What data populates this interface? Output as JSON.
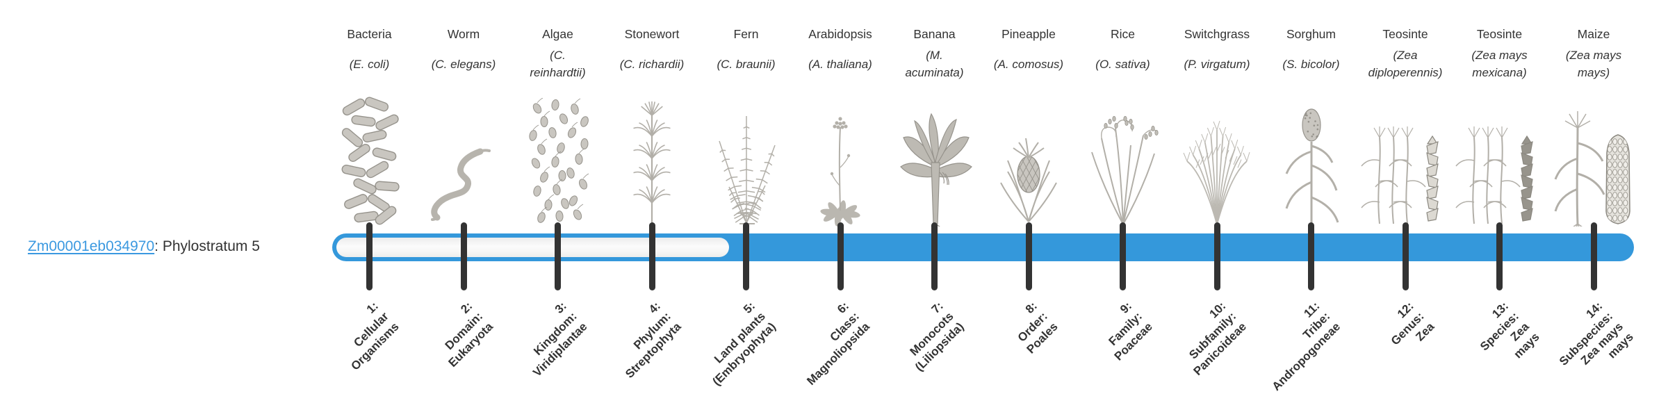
{
  "gene": {
    "id": "Zm00001eb034970",
    "description": ": Phylostratum 5"
  },
  "bar": {
    "total_strata": 14,
    "filled_from_stratum": 5,
    "unfilled_strata": [
      1,
      2,
      3,
      4
    ]
  },
  "colors": {
    "bar_blue": "#3498db",
    "tick_dark": "#333333",
    "link_blue": "#3b99e0",
    "text": "#333333",
    "icon_gray": "#b5b2ab",
    "background": "#ffffff"
  },
  "columns": [
    {
      "name": "Bacteria",
      "sci": "(E. coli)",
      "icon": "bacteria-icon",
      "stratum": [
        "1:",
        "Cellular",
        "Organisms"
      ]
    },
    {
      "name": "Worm",
      "sci": "(C. elegans)",
      "icon": "worm-icon",
      "stratum": [
        "2:",
        "Domain:",
        "Eukaryota"
      ]
    },
    {
      "name": "Algae",
      "sci": "(C. reinhardtii)",
      "icon": "algae-icon",
      "stratum": [
        "3:",
        "Kingdom:",
        "Viridiplantae"
      ]
    },
    {
      "name": "Stonewort",
      "sci": "(C. richardii)",
      "icon": "stonewort-icon",
      "stratum": [
        "4:",
        "Phylum:",
        "Streptophyta"
      ]
    },
    {
      "name": "Fern",
      "sci": "(C. braunii)",
      "icon": "fern-icon",
      "stratum": [
        "5:",
        "Land plants",
        "(Embryophyta)"
      ]
    },
    {
      "name": "Arabidopsis",
      "sci": "(A. thaliana)",
      "icon": "arabidopsis-icon",
      "stratum": [
        "6:",
        "Class:",
        "Magnoliopsida"
      ]
    },
    {
      "name": "Banana",
      "sci": "(M. acuminata)",
      "icon": "banana-icon",
      "stratum": [
        "7:",
        "Monocots",
        "(Liliopsida)"
      ]
    },
    {
      "name": "Pineapple",
      "sci": "(A. comosus)",
      "icon": "pineapple-icon",
      "stratum": [
        "8:",
        "Order:",
        "Poales"
      ]
    },
    {
      "name": "Rice",
      "sci": "(O. sativa)",
      "icon": "rice-icon",
      "stratum": [
        "9:",
        "Family:",
        "Poaceae"
      ]
    },
    {
      "name": "Switchgrass",
      "sci": "(P. virgatum)",
      "icon": "switchgrass-icon",
      "stratum": [
        "10:",
        "Subfamily:",
        "Panicoideae"
      ]
    },
    {
      "name": "Sorghum",
      "sci": "(S. bicolor)",
      "icon": "sorghum-icon",
      "stratum": [
        "11:",
        "Tribe:",
        "Andropogoneae"
      ]
    },
    {
      "name": "Teosinte",
      "sci": "(Zea diploperennis)",
      "icon": "teosinte-diploperennis-icon",
      "stratum": [
        "12:",
        "Genus:",
        "Zea"
      ]
    },
    {
      "name": "Teosinte",
      "sci": "(Zea mays mexicana)",
      "icon": "teosinte-mexicana-icon",
      "stratum": [
        "13:",
        "Species:",
        "Zea",
        "mays"
      ]
    },
    {
      "name": "Maize",
      "sci": "(Zea mays mays)",
      "icon": "maize-icon",
      "stratum": [
        "14:",
        "Subspecies:",
        "Zea mays",
        "mays"
      ]
    }
  ]
}
